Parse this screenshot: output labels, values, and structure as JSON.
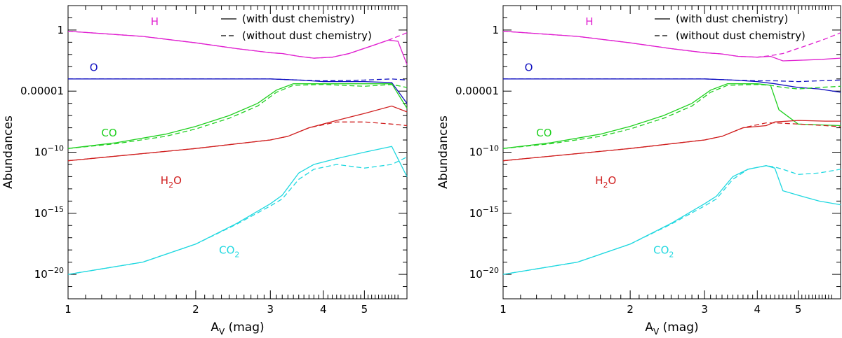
{
  "chart_data": [
    {
      "type": "line",
      "xlabel": "A_V (mag)",
      "ylabel": "Abundances",
      "xscale": "log",
      "yscale": "log",
      "xlim": [
        1,
        6.3
      ],
      "ylim": [
        1e-22,
        100.0
      ],
      "xticks": [
        {
          "value": 1,
          "label": "1"
        },
        {
          "value": 2,
          "label": "2"
        },
        {
          "value": 3,
          "label": "3"
        },
        {
          "value": 4,
          "label": "4"
        },
        {
          "value": 5,
          "label": "5"
        }
      ],
      "yticks": [
        {
          "value": 1,
          "label": "1"
        },
        {
          "value": 1e-05,
          "label": "0.00001"
        },
        {
          "value": 1e-10,
          "label": "10",
          "sup": "−10"
        },
        {
          "value": 1e-15,
          "label": "10",
          "sup": "−15"
        },
        {
          "value": 1e-20,
          "label": "10",
          "sup": "−20"
        }
      ],
      "legend": {
        "position": "top-right",
        "entries": [
          {
            "style": "solid",
            "label": "(with dust chemistry)"
          },
          {
            "style": "dashed",
            "label": "(without dust chemistry)"
          }
        ]
      },
      "series": [
        {
          "name": "H",
          "label": "H",
          "color": "#e020d0",
          "with": {
            "x": [
              1,
              1.5,
              2,
              2.5,
              3,
              3.2,
              3.5,
              3.8,
              4.2,
              4.6,
              5.2,
              5.7,
              6.0,
              6.3
            ],
            "y": [
              0.8,
              0.3,
              0.09,
              0.03,
              0.014,
              0.012,
              0.007,
              0.005,
              0.006,
              0.012,
              0.05,
              0.15,
              0.12,
              0.0015
            ]
          },
          "without": {
            "x": [
              1,
              1.5,
              2,
              2.5,
              3,
              3.2,
              3.5,
              3.8,
              4.2,
              4.6,
              5.2,
              5.7,
              6.0,
              6.3
            ],
            "y": [
              0.8,
              0.3,
              0.09,
              0.03,
              0.014,
              0.012,
              0.007,
              0.005,
              0.006,
              0.012,
              0.05,
              0.15,
              0.3,
              0.6
            ]
          }
        },
        {
          "name": "O",
          "label": "O",
          "color": "#1010c0",
          "with": {
            "x": [
              1,
              2,
              3,
              3.5,
              4,
              5,
              5.8,
              6.3
            ],
            "y": [
              0.0001,
              0.0001,
              0.0001,
              8e-05,
              6e-05,
              6e-05,
              5e-05,
              1e-06
            ]
          },
          "without": {
            "x": [
              1,
              2,
              3,
              3.5,
              4,
              5,
              5.8,
              6.3
            ],
            "y": [
              0.0001,
              0.0001,
              0.0001,
              8e-05,
              7e-05,
              8e-05,
              0.0001,
              8e-05
            ]
          }
        },
        {
          "name": "CO",
          "label": "CO",
          "color": "#20d020",
          "with": {
            "x": [
              1,
              1.3,
              1.7,
              2,
              2.4,
              2.8,
              3.1,
              3.4,
              4,
              5,
              5.8,
              6.3
            ],
            "y": [
              2e-10,
              6e-10,
              3e-09,
              1.3e-08,
              1e-07,
              1e-06,
              1.2e-05,
              4e-05,
              4e-05,
              4e-05,
              4e-05,
              4e-07
            ]
          },
          "without": {
            "x": [
              1,
              1.3,
              1.7,
              2,
              2.4,
              2.8,
              3.1,
              3.4,
              4,
              5,
              5.8,
              6.3
            ],
            "y": [
              2e-10,
              5e-10,
              2e-09,
              8e-09,
              6e-08,
              6e-07,
              8e-06,
              3e-05,
              3.5e-05,
              2.5e-05,
              3.5e-05,
              2e-05
            ]
          }
        },
        {
          "name": "H2O",
          "label": "H",
          "label_sub": "2",
          "label_suffix": "O",
          "color": "#d02020",
          "with": {
            "x": [
              1,
              2,
              3,
              3.3,
              3.7,
              4.3,
              5,
              5.8,
              6.3
            ],
            "y": [
              2e-11,
              2e-10,
              1e-09,
              2e-09,
              1e-08,
              4e-08,
              1.5e-07,
              6e-07,
              2e-07
            ]
          },
          "without": {
            "x": [
              1,
              2,
              3,
              3.3,
              3.7,
              4.3,
              5,
              5.8,
              6.3
            ],
            "y": [
              2e-11,
              2e-10,
              1e-09,
              2e-09,
              1e-08,
              3e-08,
              3e-08,
              2e-08,
              1.5e-08
            ]
          }
        },
        {
          "name": "CO2",
          "label": "CO",
          "label_sub": "2",
          "label_suffix": "",
          "color": "#20d8e0",
          "with": {
            "x": [
              1,
              1.5,
              2,
              2.5,
              3,
              3.2,
              3.5,
              3.8,
              4.3,
              5,
              5.8,
              6.3
            ],
            "y": [
              1e-20,
              1e-19,
              3e-18,
              1.5e-16,
              6e-15,
              3e-14,
              2e-12,
              1e-11,
              3e-11,
              1e-10,
              3e-10,
              1e-12
            ]
          },
          "without": {
            "x": [
              1,
              1.5,
              2,
              2.5,
              3,
              3.2,
              3.5,
              3.8,
              4.3,
              5,
              5.8,
              6.3
            ],
            "y": [
              1e-20,
              1e-19,
              3e-18,
              1.3e-16,
              4e-15,
              1.5e-14,
              6e-13,
              4e-12,
              1e-11,
              5e-12,
              1e-11,
              4e-11
            ]
          }
        }
      ]
    },
    {
      "type": "line",
      "xlabel": "A_V (mag)",
      "ylabel": "Abundances",
      "xscale": "log",
      "yscale": "log",
      "xlim": [
        1,
        6.3
      ],
      "ylim": [
        1e-22,
        100.0
      ],
      "xticks": [
        {
          "value": 1,
          "label": "1"
        },
        {
          "value": 2,
          "label": "2"
        },
        {
          "value": 3,
          "label": "3"
        },
        {
          "value": 4,
          "label": "4"
        },
        {
          "value": 5,
          "label": "5"
        }
      ],
      "yticks": [
        {
          "value": 1,
          "label": "1"
        },
        {
          "value": 1e-05,
          "label": "0.00001"
        },
        {
          "value": 1e-10,
          "label": "10",
          "sup": "−10"
        },
        {
          "value": 1e-15,
          "label": "10",
          "sup": "−15"
        },
        {
          "value": 1e-20,
          "label": "10",
          "sup": "−20"
        }
      ],
      "legend": {
        "position": "top-right",
        "entries": [
          {
            "style": "solid",
            "label": "(with dust chemistry)"
          },
          {
            "style": "dashed",
            "label": "(without dust chemistry)"
          }
        ]
      },
      "series": [
        {
          "name": "H",
          "label": "H",
          "color": "#e020d0",
          "with": {
            "x": [
              1,
              1.5,
              2,
              2.5,
              3,
              3.3,
              3.6,
              4.0,
              4.3,
              4.6,
              5.2,
              5.7,
              6.0,
              6.3
            ],
            "y": [
              0.8,
              0.3,
              0.09,
              0.03,
              0.014,
              0.011,
              0.007,
              0.006,
              0.007,
              0.003,
              0.0035,
              0.004,
              0.0045,
              0.005
            ]
          },
          "without": {
            "x": [
              1,
              1.5,
              2,
              2.5,
              3,
              3.3,
              3.6,
              4.0,
              4.3,
              4.6,
              5.2,
              5.7,
              6.0,
              6.3
            ],
            "y": [
              0.8,
              0.3,
              0.09,
              0.03,
              0.014,
              0.011,
              0.007,
              0.006,
              0.008,
              0.012,
              0.05,
              0.15,
              0.3,
              0.6
            ]
          }
        },
        {
          "name": "O",
          "label": "O",
          "color": "#1010c0",
          "with": {
            "x": [
              1,
              2,
              3,
              3.5,
              4,
              4.4,
              5,
              5.6,
              6.3
            ],
            "y": [
              0.0001,
              0.0001,
              0.0001,
              8e-05,
              6e-05,
              4e-05,
              2e-05,
              1.5e-05,
              8e-06
            ]
          },
          "without": {
            "x": [
              1,
              2,
              3,
              3.5,
              4,
              4.4,
              5,
              5.6,
              6.3
            ],
            "y": [
              0.0001,
              0.0001,
              0.0001,
              8e-05,
              7e-05,
              7e-05,
              6e-05,
              7e-05,
              8e-05
            ]
          }
        },
        {
          "name": "CO",
          "label": "CO",
          "color": "#20d020",
          "with": {
            "x": [
              1,
              1.3,
              1.7,
              2,
              2.4,
              2.8,
              3.1,
              3.4,
              4.0,
              4.3,
              4.5,
              5,
              6.3
            ],
            "y": [
              2e-10,
              6e-10,
              3e-09,
              1.3e-08,
              1e-07,
              1e-06,
              1.2e-05,
              4e-05,
              4e-05,
              3e-05,
              3e-07,
              2e-08,
              1.5e-08
            ]
          },
          "without": {
            "x": [
              1,
              1.3,
              1.7,
              2,
              2.4,
              2.8,
              3.1,
              3.4,
              4.0,
              4.3,
              4.6,
              5,
              5.6,
              6.3
            ],
            "y": [
              2e-10,
              5e-10,
              2e-09,
              8e-09,
              6e-08,
              6e-07,
              8e-06,
              3e-05,
              3.5e-05,
              3e-05,
              2e-05,
              1.5e-05,
              2e-05,
              2.5e-05
            ]
          }
        },
        {
          "name": "H2O",
          "label": "H",
          "label_sub": "2",
          "label_suffix": "O",
          "color": "#d02020",
          "with": {
            "x": [
              1,
              2,
              3,
              3.3,
              3.7,
              4.2,
              4.4,
              5,
              5.8,
              6.3
            ],
            "y": [
              2e-11,
              2e-10,
              1e-09,
              2e-09,
              1e-08,
              1.5e-08,
              3e-08,
              4e-08,
              3.5e-08,
              3.5e-08
            ]
          },
          "without": {
            "x": [
              1,
              2,
              3,
              3.3,
              3.7,
              4.2,
              4.4,
              5,
              5.8,
              6.3
            ],
            "y": [
              2e-11,
              2e-10,
              1e-09,
              2e-09,
              1e-08,
              2.5e-08,
              2.5e-08,
              2e-08,
              1.5e-08,
              1.2e-08
            ]
          }
        },
        {
          "name": "CO2",
          "label": "CO",
          "label_sub": "2",
          "label_suffix": "",
          "color": "#20d8e0",
          "with": {
            "x": [
              1,
              1.5,
              2,
              2.5,
              3,
              3.2,
              3.5,
              3.8,
              4.2,
              4.4,
              4.6,
              5,
              5.6,
              6.3
            ],
            "y": [
              1e-20,
              1e-19,
              3e-18,
              1.5e-16,
              6e-15,
              2.5e-14,
              1e-12,
              4e-12,
              8e-12,
              5e-12,
              7e-14,
              3e-14,
              1e-14,
              5e-15
            ]
          },
          "without": {
            "x": [
              1,
              1.5,
              2,
              2.5,
              3,
              3.2,
              3.5,
              3.8,
              4.2,
              4.4,
              4.6,
              5,
              5.6,
              6.3
            ],
            "y": [
              1e-20,
              1e-19,
              3e-18,
              1.3e-16,
              4e-15,
              1.5e-14,
              6e-13,
              4e-12,
              8e-12,
              6e-12,
              4e-12,
              1.5e-12,
              2e-12,
              4e-12
            ]
          }
        }
      ]
    }
  ]
}
